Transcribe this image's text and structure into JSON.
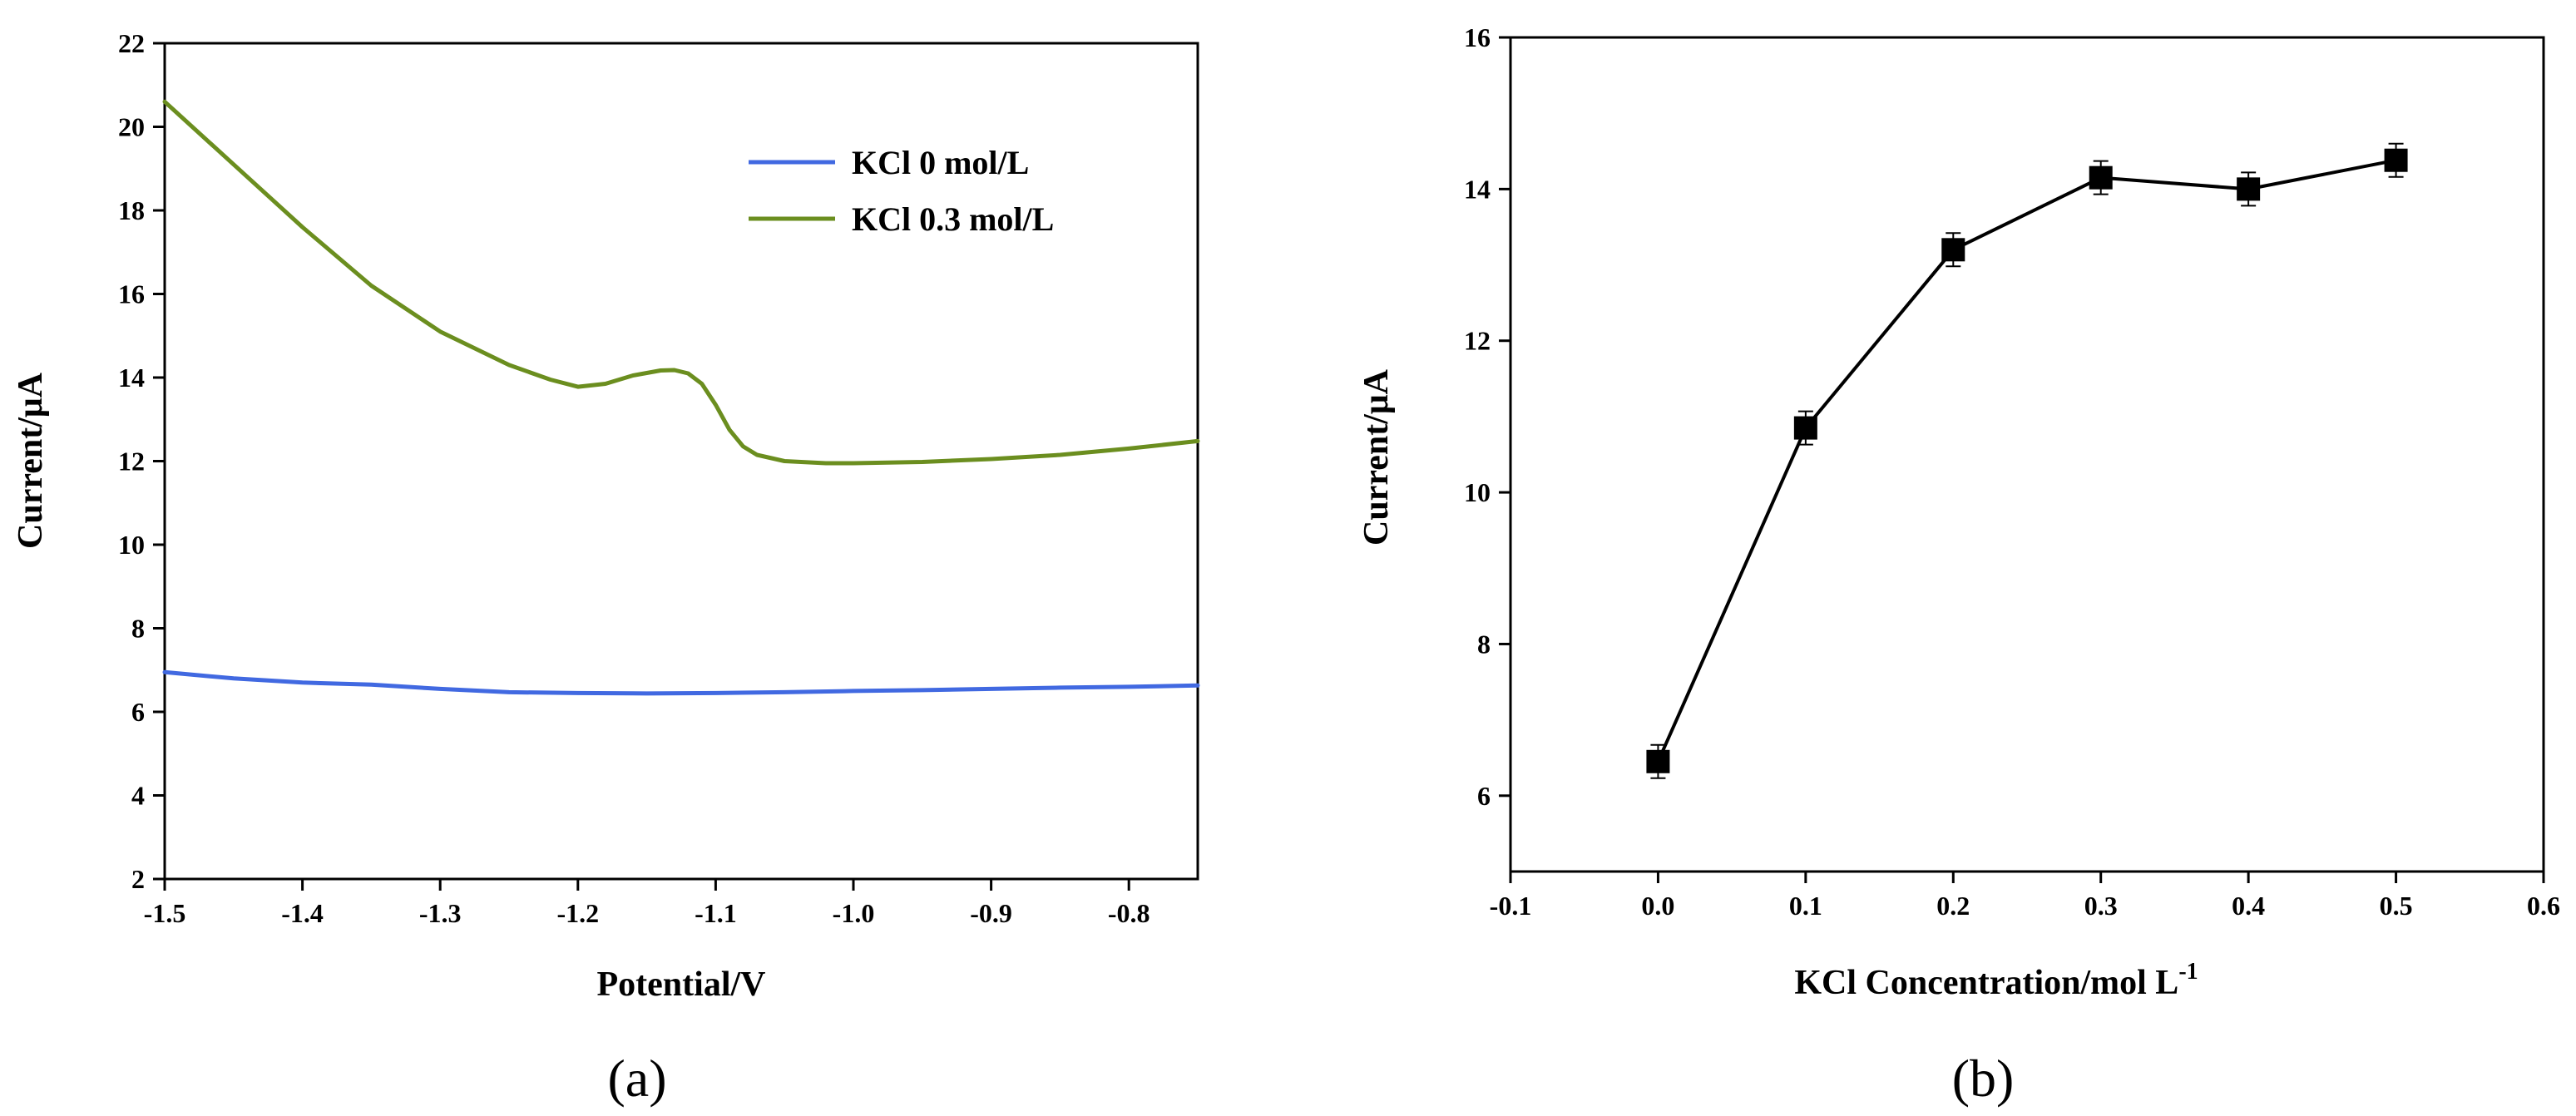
{
  "chart_data": [
    {
      "type": "line",
      "panel_label": "(a)",
      "xlabel": "Potential/V",
      "ylabel": "Current/μA",
      "xlim": [
        -1.5,
        -0.75
      ],
      "ylim": [
        2,
        22
      ],
      "xticks": [
        -1.5,
        -1.4,
        -1.3,
        -1.2,
        -1.1,
        -1.0,
        -0.9,
        -0.8
      ],
      "xtick_labels": [
        "-1.5",
        "-1.4",
        "-1.3",
        "-1.2",
        "-1.1",
        "-1.0",
        "-0.9",
        "-0.8"
      ],
      "yticks": [
        2,
        4,
        6,
        8,
        10,
        12,
        14,
        16,
        18,
        20,
        22
      ],
      "ytick_labels": [
        "2",
        "4",
        "6",
        "8",
        "10",
        "12",
        "14",
        "16",
        "18",
        "20",
        "22"
      ],
      "legend_position": "top-right",
      "series": [
        {
          "name": "KCl 0 mol/L",
          "color": "#4169e1",
          "x": [
            -1.5,
            -1.45,
            -1.4,
            -1.35,
            -1.3,
            -1.25,
            -1.2,
            -1.15,
            -1.1,
            -1.05,
            -1.0,
            -0.95,
            -0.9,
            -0.85,
            -0.8,
            -0.75
          ],
          "y": [
            6.95,
            6.8,
            6.7,
            6.65,
            6.55,
            6.47,
            6.45,
            6.44,
            6.45,
            6.47,
            6.5,
            6.52,
            6.55,
            6.58,
            6.6,
            6.63
          ]
        },
        {
          "name": "KCl 0.3 mol/L",
          "color": "#6b8e1f",
          "x": [
            -1.5,
            -1.45,
            -1.4,
            -1.35,
            -1.3,
            -1.25,
            -1.22,
            -1.2,
            -1.18,
            -1.16,
            -1.14,
            -1.13,
            -1.12,
            -1.11,
            -1.1,
            -1.09,
            -1.08,
            -1.07,
            -1.05,
            -1.02,
            -1.0,
            -0.95,
            -0.9,
            -0.85,
            -0.8,
            -0.75
          ],
          "y": [
            20.6,
            19.1,
            17.6,
            16.2,
            15.1,
            14.3,
            13.95,
            13.78,
            13.85,
            14.05,
            14.17,
            14.18,
            14.1,
            13.85,
            13.35,
            12.75,
            12.35,
            12.15,
            12.0,
            11.95,
            11.95,
            11.98,
            12.05,
            12.15,
            12.3,
            12.48
          ]
        }
      ]
    },
    {
      "type": "line",
      "panel_label": "(b)",
      "xlabel_main": "KCl Concentration/mol L",
      "xlabel_sup": "-1",
      "ylabel": "Current/μA",
      "xlim": [
        -0.1,
        0.6
      ],
      "ylim": [
        5,
        16
      ],
      "xticks": [
        -0.1,
        0.0,
        0.1,
        0.2,
        0.3,
        0.4,
        0.5,
        0.6
      ],
      "xtick_labels": [
        "-0.1",
        "0.0",
        "0.1",
        "0.2",
        "0.3",
        "0.4",
        "0.5",
        "0.6"
      ],
      "yticks": [
        6,
        8,
        10,
        12,
        14,
        16
      ],
      "ytick_labels": [
        "6",
        "8",
        "10",
        "12",
        "14",
        "16"
      ],
      "series": [
        {
          "name": "Current",
          "color": "#000000",
          "marker": "square",
          "x": [
            0.0,
            0.1,
            0.2,
            0.3,
            0.4,
            0.5
          ],
          "y": [
            6.45,
            10.85,
            13.2,
            14.15,
            14.0,
            14.38
          ]
        }
      ]
    }
  ]
}
